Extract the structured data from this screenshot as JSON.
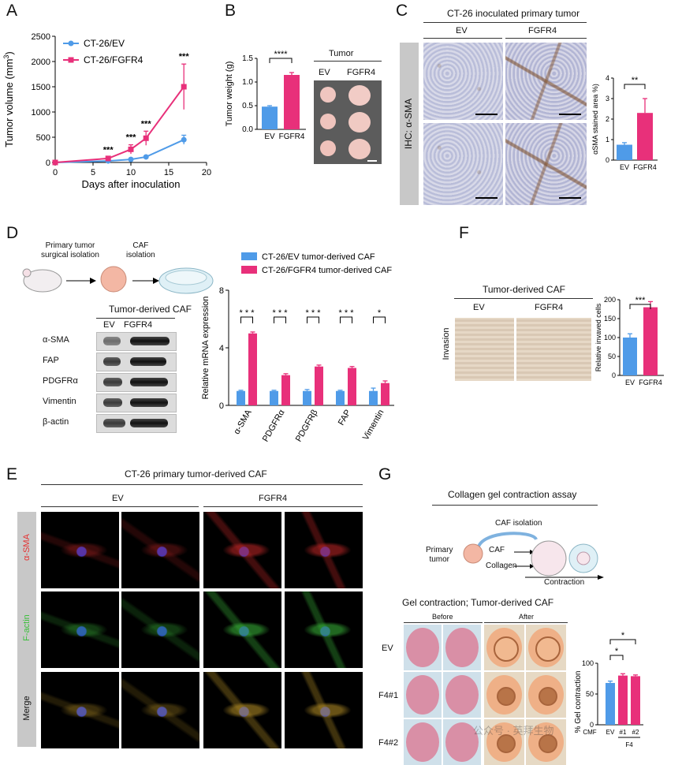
{
  "panels": {
    "A": "A",
    "B": "B",
    "C": "C",
    "D": "D",
    "E": "E",
    "F": "F",
    "G": "G"
  },
  "A": {
    "ylabel": "Tumor volume (mm",
    "ylabel_sup": "3",
    "ylabel_end": ")",
    "xlabel": "Days after inoculation",
    "legend": [
      "CT-26/EV",
      "CT-26/FGFR4"
    ],
    "sig": [
      "***",
      "***",
      "***",
      "***"
    ],
    "yticks": [
      "0",
      "500",
      "1000",
      "1500",
      "2000",
      "2500"
    ],
    "xticks": [
      "0",
      "5",
      "10",
      "15",
      "20"
    ]
  },
  "B": {
    "ylabel": "Tumor weight (g)",
    "yticks": [
      "0.0",
      "0.5",
      "1.0",
      "1.5"
    ],
    "categories": [
      "EV",
      "FGFR4"
    ],
    "sig": "****",
    "photo_title": "Tumor",
    "photo_cols": [
      "EV",
      "FGFR4"
    ]
  },
  "C": {
    "title": "CT-26 inoculated primary tumor",
    "cols": [
      "EV",
      "FGFR4"
    ],
    "side_label": "IHC: α-SMA",
    "ylabel": "αSMA stained area %)",
    "yticks": [
      "0",
      "1",
      "2",
      "3",
      "4"
    ],
    "categories": [
      "EV",
      "FGFR4"
    ],
    "sig": "**"
  },
  "D": {
    "schema": [
      "Primary tumor\nsurgical isolation",
      "CAF\nisolation"
    ],
    "schema_l1": "Primary tumor",
    "schema_l2": "surgical isolation",
    "schema_c1": "CAF",
    "schema_c2": "isolation",
    "wb_title": "Tumor-derived CAF",
    "wb_cols": [
      "EV",
      "FGFR4"
    ],
    "wb_rows": [
      "α-SMA",
      "FAP",
      "PDGFRα",
      "Vimentin",
      "β-actin"
    ],
    "legend": [
      "CT-26/EV tumor-derived CAF",
      "CT-26/FGFR4 tumor-derived CAF"
    ],
    "ylabel": "Relative mRNA expression",
    "yticks": [
      "0",
      "4",
      "8"
    ],
    "categories": [
      "α-SMA",
      "PDGFRα",
      "PDGFRβ",
      "FAP",
      "Vimentin"
    ],
    "sig": [
      "* * *",
      "* * *",
      "* * *",
      "* * *",
      "*"
    ]
  },
  "E": {
    "title": "CT-26 primary tumor-derived CAF",
    "cols": [
      "EV",
      "FGFR4"
    ],
    "rows": [
      "α-SMA",
      "F-actin",
      "Merge"
    ]
  },
  "F": {
    "title": "Tumor-derived CAF",
    "cols": [
      "EV",
      "FGFR4"
    ],
    "side_label": "Invasion",
    "ylabel": "Relative invaved cells",
    "yticks": [
      "0",
      "50",
      "100",
      "150",
      "200"
    ],
    "categories": [
      "EV",
      "FGFR4"
    ],
    "sig": "***"
  },
  "G": {
    "title": "Collagen gel contraction assay",
    "caf_isolation": "CAF isolation",
    "primary": "Primary",
    "tumor": "tumor",
    "caf": "CAF",
    "collagen": "Collagen",
    "contraction": "Contraction",
    "gel_title": "Gel contraction; Tumor-derived CAF",
    "before": "Before",
    "after": "After",
    "rows": [
      "EV",
      "F4#1",
      "F4#2"
    ],
    "ylabel": "% Gel contraction",
    "yticks": [
      "0",
      "50",
      "100"
    ],
    "categories": [
      "CMF",
      "EV",
      "#1",
      "#2"
    ],
    "group_label": "F4",
    "sig": [
      "*",
      "*"
    ]
  },
  "watermark": "公众号 · 英拜生物",
  "colors": {
    "ev": "#4f9be8",
    "fgfr4": "#e8307a"
  },
  "chart_data": [
    {
      "type": "line",
      "panel": "A",
      "ylabel": "Tumor volume (mm3)",
      "xlabel": "Days after inoculation",
      "xlim": [
        0,
        20
      ],
      "ylim": [
        0,
        2500
      ],
      "series": [
        {
          "name": "CT-26/EV",
          "x": [
            0,
            7,
            10,
            12,
            17
          ],
          "y": [
            0,
            30,
            60,
            110,
            450
          ],
          "err": [
            0,
            10,
            20,
            20,
            90
          ]
        },
        {
          "name": "CT-26/FGFR4",
          "x": [
            0,
            7,
            10,
            12,
            17
          ],
          "y": [
            0,
            80,
            260,
            480,
            1500
          ],
          "err": [
            0,
            20,
            90,
            140,
            450
          ]
        }
      ]
    },
    {
      "type": "bar",
      "panel": "B",
      "categories": [
        "EV",
        "FGFR4"
      ],
      "values": [
        0.48,
        1.15
      ],
      "err": [
        0.02,
        0.05
      ],
      "ylabel": "Tumor weight (g)",
      "ylim": [
        0,
        1.5
      ]
    },
    {
      "type": "bar",
      "panel": "C",
      "categories": [
        "EV",
        "FGFR4"
      ],
      "values": [
        0.75,
        2.3
      ],
      "err": [
        0.1,
        0.7
      ],
      "ylabel": "αSMA stained area %)",
      "ylim": [
        0,
        4
      ]
    },
    {
      "type": "bar",
      "panel": "D",
      "categories": [
        "α-SMA",
        "PDGFRα",
        "PDGFRβ",
        "FAP",
        "Vimentin"
      ],
      "series": [
        {
          "name": "CT-26/EV tumor-derived CAF",
          "values": [
            1.0,
            1.0,
            1.0,
            1.0,
            1.0
          ],
          "err": [
            0.05,
            0.05,
            0.1,
            0.05,
            0.2
          ]
        },
        {
          "name": "CT-26/FGFR4 tumor-derived CAF",
          "values": [
            5.0,
            2.1,
            2.7,
            2.6,
            1.55
          ],
          "err": [
            0.1,
            0.1,
            0.1,
            0.1,
            0.15
          ]
        }
      ],
      "ylabel": "Relative mRNA expression",
      "ylim": [
        0,
        8
      ]
    },
    {
      "type": "bar",
      "panel": "F",
      "categories": [
        "EV",
        "FGFR4"
      ],
      "values": [
        100,
        180
      ],
      "err": [
        10,
        15
      ],
      "ylabel": "Relative invaved cells",
      "ylim": [
        0,
        200
      ]
    },
    {
      "type": "bar",
      "panel": "G",
      "categories": [
        "EV",
        "#1",
        "#2"
      ],
      "values": [
        68,
        80,
        79
      ],
      "err": [
        3,
        3,
        2
      ],
      "ylabel": "% Gel contraction",
      "ylim": [
        0,
        100
      ]
    }
  ]
}
